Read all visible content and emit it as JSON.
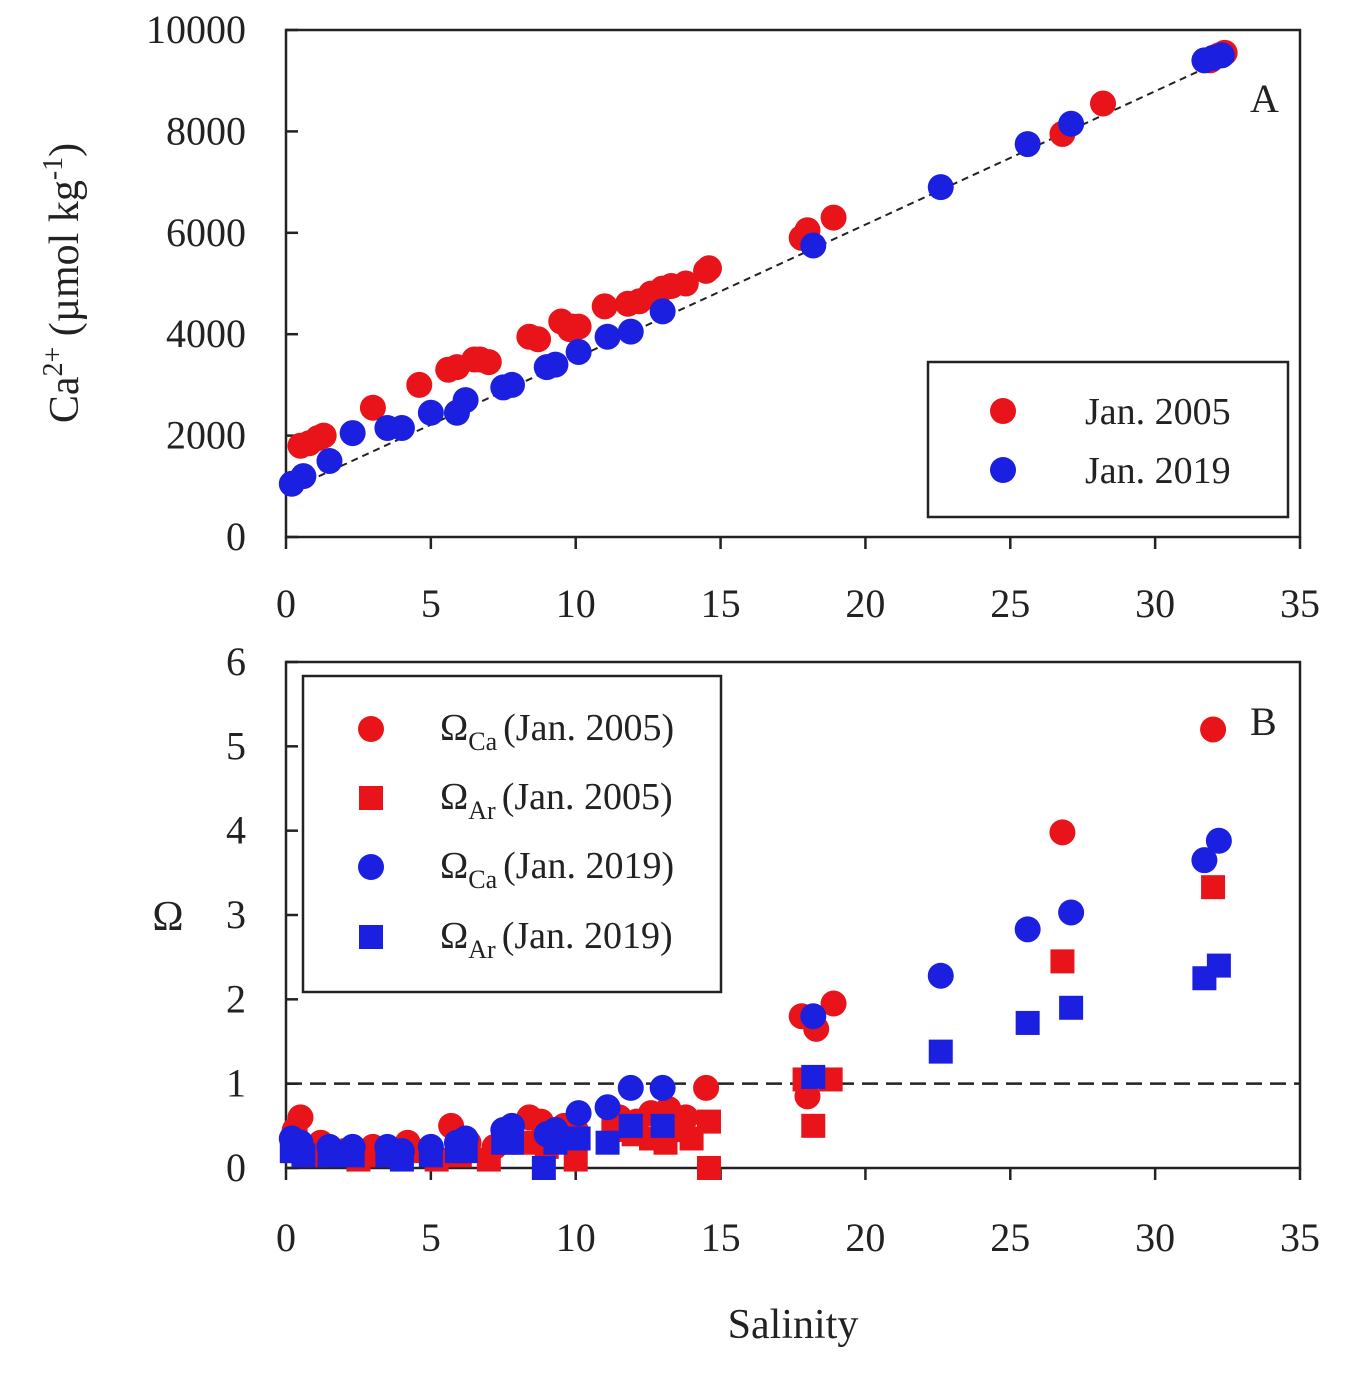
{
  "chart_data": [
    {
      "panel": "A",
      "type": "scatter",
      "xlabel": "",
      "ylabel": {
        "base": "Ca",
        "sup1": "2+",
        "mid": " (µmol kg",
        "sup2": "-1",
        "end": ")"
      },
      "xlim": [
        0,
        35
      ],
      "ylim": [
        0,
        10000
      ],
      "xticks": [
        "0",
        "5",
        "10",
        "15",
        "20",
        "25",
        "30",
        "35"
      ],
      "yticks": [
        "0",
        "2000",
        "4000",
        "6000",
        "8000",
        "10000"
      ],
      "legend_position": "lower-right",
      "fit_line": {
        "style": "dashed",
        "x": [
          0,
          32.5
        ],
        "y": [
          900,
          9450
        ]
      },
      "series": [
        {
          "name": "Jan. 2005",
          "color": "#e8141a",
          "marker": "circle",
          "x": [
            0.5,
            0.8,
            1.1,
            1.3,
            3.0,
            4.6,
            5.6,
            5.9,
            6.5,
            6.7,
            7.0,
            8.4,
            8.7,
            9.5,
            9.8,
            9.9,
            10.1,
            11.0,
            11.8,
            12.2,
            12.6,
            13.0,
            13.3,
            13.8,
            14.5,
            14.6,
            17.8,
            18.0,
            18.9,
            26.8,
            28.2,
            31.9,
            32.2,
            32.4
          ],
          "y": [
            1800,
            1850,
            1950,
            2000,
            2550,
            3000,
            3300,
            3350,
            3500,
            3500,
            3450,
            3950,
            3900,
            4250,
            4100,
            4150,
            4150,
            4550,
            4600,
            4650,
            4800,
            4900,
            4950,
            5000,
            5250,
            5300,
            5900,
            6050,
            6300,
            7950,
            8550,
            9400,
            9500,
            9550
          ]
        },
        {
          "name": "Jan. 2019",
          "color": "#1a1fe0",
          "marker": "circle",
          "x": [
            0.2,
            0.6,
            1.5,
            2.3,
            3.5,
            4.0,
            5.0,
            5.9,
            6.2,
            7.5,
            7.8,
            9.0,
            9.3,
            10.1,
            11.1,
            11.9,
            13.0,
            18.2,
            22.6,
            25.6,
            27.1,
            31.7,
            32.0,
            32.3
          ],
          "y": [
            1050,
            1200,
            1500,
            2050,
            2150,
            2150,
            2450,
            2450,
            2700,
            2950,
            3000,
            3350,
            3400,
            3650,
            3950,
            4050,
            4450,
            5750,
            6900,
            7750,
            8150,
            9400,
            9450,
            9500
          ]
        }
      ]
    },
    {
      "panel": "B",
      "type": "scatter",
      "xlabel": "Salinity",
      "ylabel": "Ω",
      "xlim": [
        0,
        35
      ],
      "ylim": [
        0,
        6
      ],
      "xticks": [
        "0",
        "5",
        "10",
        "15",
        "20",
        "25",
        "30",
        "35"
      ],
      "yticks": [
        "0",
        "1",
        "2",
        "3",
        "4",
        "5",
        "6"
      ],
      "legend_position": "upper-left",
      "reference_line": {
        "style": "dashed",
        "y": 1
      },
      "series": [
        {
          "name": "ΩCa (Jan. 2005)",
          "omega_sub": "Ca",
          "period": "(Jan. 2005)",
          "color": "#e8141a",
          "marker": "circle",
          "x": [
            0.3,
            0.5,
            1.2,
            2.0,
            3.0,
            4.2,
            5.0,
            5.7,
            6.3,
            7.2,
            8.4,
            8.8,
            9.6,
            10.0,
            11.5,
            12.1,
            12.6,
            13.2,
            13.8,
            14.5,
            17.8,
            18.0,
            18.3,
            18.9,
            26.8,
            32.0
          ],
          "y": [
            0.45,
            0.6,
            0.3,
            0.2,
            0.25,
            0.3,
            0.2,
            0.5,
            0.3,
            0.25,
            0.6,
            0.55,
            0.5,
            0.45,
            0.6,
            0.55,
            0.65,
            0.7,
            0.6,
            0.95,
            1.8,
            0.85,
            1.65,
            1.95,
            3.98,
            5.2
          ]
        },
        {
          "name": "ΩAr (Jan. 2005)",
          "omega_sub": "Ar",
          "period": "(Jan. 2005)",
          "color": "#e8141a",
          "marker": "square",
          "x": [
            0.3,
            1.0,
            2.5,
            3.2,
            4.5,
            5.2,
            6.0,
            7.0,
            8.2,
            9.0,
            10.0,
            11.3,
            12.0,
            12.6,
            13.1,
            13.6,
            14.0,
            14.6,
            14.6,
            17.9,
            18.2,
            18.8,
            26.8,
            32.0
          ],
          "y": [
            0.2,
            0.15,
            0.1,
            0.15,
            0.2,
            0.1,
            0.15,
            0.1,
            0.3,
            0.25,
            0.1,
            0.45,
            0.4,
            0.35,
            0.3,
            0.45,
            0.35,
            0.55,
            0.0,
            1.05,
            0.5,
            1.05,
            2.45,
            3.33
          ]
        },
        {
          "name": "ΩCa (Jan. 2019)",
          "omega_sub": "Ca",
          "period": "(Jan. 2019)",
          "color": "#1a1fe0",
          "marker": "circle",
          "x": [
            0.2,
            0.5,
            1.5,
            2.3,
            3.5,
            4.0,
            5.0,
            5.9,
            6.2,
            7.5,
            7.8,
            9.0,
            9.3,
            10.1,
            11.1,
            11.9,
            13.0,
            18.2,
            22.6,
            25.6,
            27.1,
            31.7,
            32.2
          ],
          "y": [
            0.35,
            0.3,
            0.25,
            0.25,
            0.25,
            0.2,
            0.25,
            0.3,
            0.35,
            0.45,
            0.5,
            0.4,
            0.45,
            0.65,
            0.72,
            0.95,
            0.95,
            1.8,
            2.28,
            2.83,
            3.03,
            3.65,
            3.88
          ]
        },
        {
          "name": "ΩAr (Jan. 2019)",
          "omega_sub": "Ar",
          "period": "(Jan. 2019)",
          "color": "#1a1fe0",
          "marker": "square",
          "x": [
            0.2,
            0.6,
            1.5,
            2.3,
            3.5,
            4.0,
            5.0,
            5.9,
            6.2,
            7.5,
            7.8,
            8.9,
            9.3,
            10.1,
            11.1,
            11.9,
            13.0,
            18.2,
            22.6,
            25.6,
            27.1,
            31.7,
            32.2
          ],
          "y": [
            0.2,
            0.15,
            0.15,
            0.15,
            0.15,
            0.1,
            0.15,
            0.2,
            0.2,
            0.3,
            0.3,
            0.0,
            0.3,
            0.35,
            0.3,
            0.5,
            0.5,
            1.08,
            1.38,
            1.72,
            1.9,
            2.25,
            2.4
          ]
        }
      ]
    }
  ]
}
